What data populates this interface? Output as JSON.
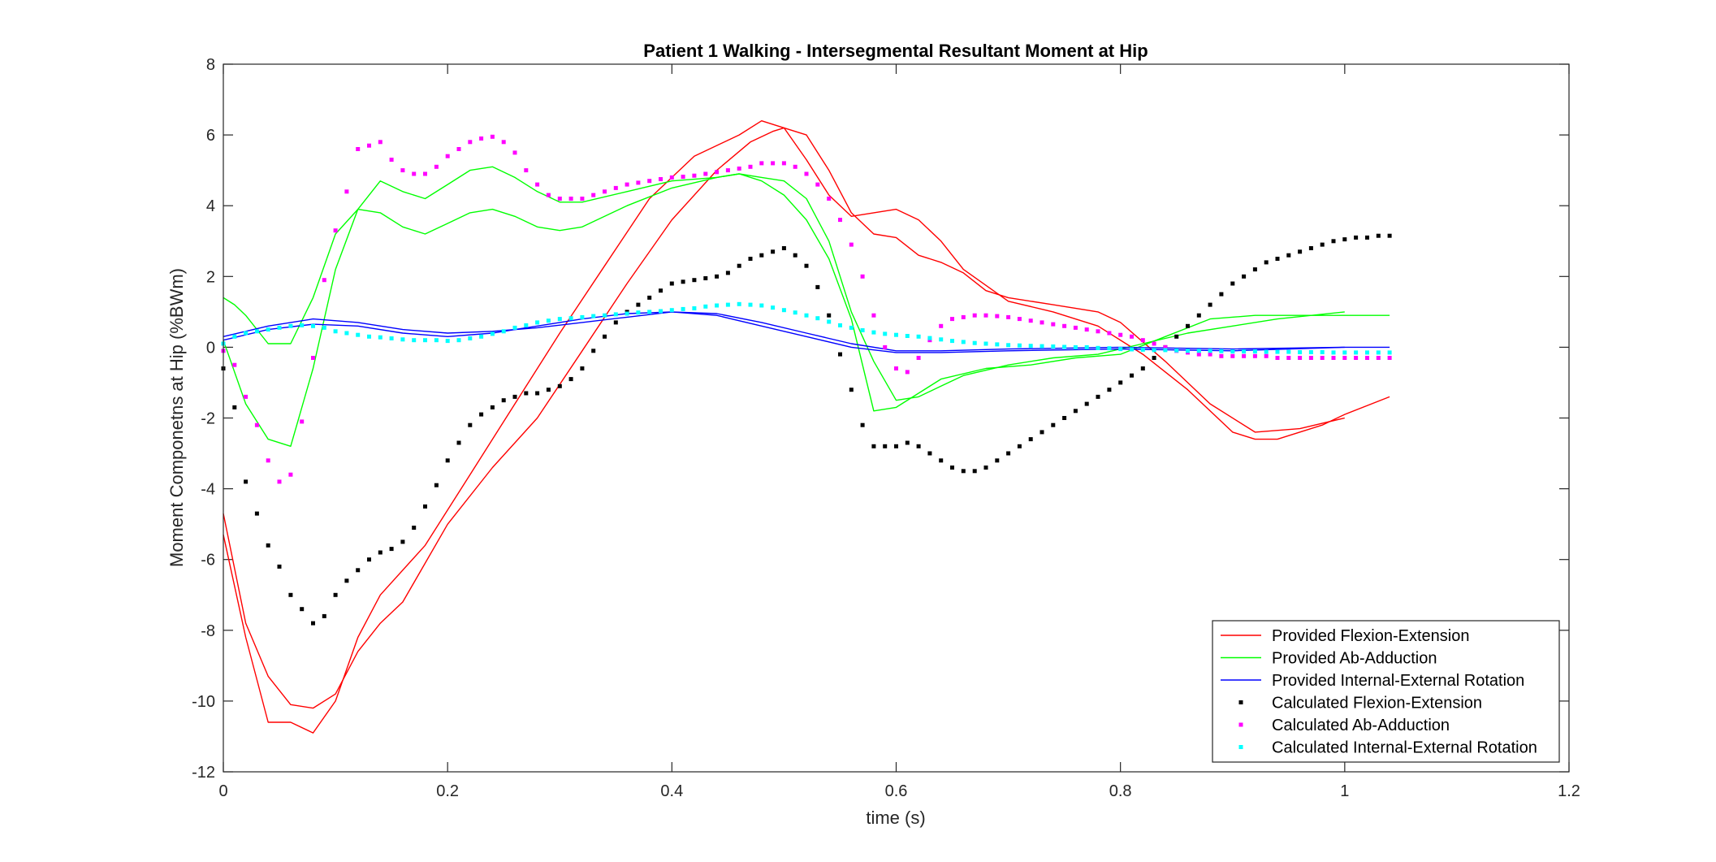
{
  "chart_data": {
    "type": "line",
    "title": "Patient 1 Walking - Intersegmental Resultant Moment at Hip",
    "xlabel": "time (s)",
    "ylabel": "Moment Componetns at Hip (%BWm)",
    "xlim": [
      0,
      1.2
    ],
    "ylim": [
      -12,
      8
    ],
    "xticks": [
      0,
      0.2,
      0.4,
      0.6,
      0.8,
      1,
      1.2
    ],
    "xtick_labels": [
      "0",
      "0.2",
      "0.4",
      "0.6",
      "0.8",
      "1",
      "1.2"
    ],
    "yticks": [
      -12,
      -10,
      -8,
      -6,
      -4,
      -2,
      0,
      2,
      4,
      6,
      8
    ],
    "ytick_labels": [
      "-12",
      "-10",
      "-8",
      "-6",
      "-4",
      "-2",
      "0",
      "2",
      "4",
      "6",
      "8"
    ],
    "grid": false,
    "legend_position": "bottom-right",
    "series": [
      {
        "name": "Provided Flexion-Extension",
        "style": "line",
        "color": "#ff0000",
        "segments": [
          {
            "x": [
              0,
              0.02,
              0.04,
              0.06,
              0.08,
              0.1,
              0.12,
              0.14,
              0.16,
              0.2,
              0.24,
              0.28,
              0.32,
              0.36,
              0.4,
              0.44,
              0.47,
              0.49,
              0.5,
              0.52,
              0.54,
              0.56,
              0.58,
              0.6,
              0.62,
              0.64,
              0.66,
              0.68,
              0.7,
              0.74,
              0.78,
              0.8,
              0.84,
              0.88,
              0.92,
              0.96,
              1.0
            ],
            "y": [
              -4.7,
              -7.8,
              -9.3,
              -10.1,
              -10.2,
              -9.8,
              -8.6,
              -7.8,
              -7.2,
              -5.0,
              -3.4,
              -2.0,
              -0.1,
              1.8,
              3.6,
              5.0,
              5.8,
              6.1,
              6.2,
              6.0,
              5.0,
              3.8,
              3.2,
              3.1,
              2.6,
              2.4,
              2.1,
              1.6,
              1.4,
              1.2,
              1.0,
              0.7,
              -0.4,
              -1.6,
              -2.4,
              -2.3,
              -2.0
            ]
          },
          {
            "x": [
              0,
              0.02,
              0.04,
              0.06,
              0.08,
              0.1,
              0.12,
              0.14,
              0.18,
              0.22,
              0.26,
              0.3,
              0.34,
              0.38,
              0.42,
              0.46,
              0.48,
              0.5,
              0.52,
              0.54,
              0.56,
              0.58,
              0.6,
              0.62,
              0.64,
              0.66,
              0.7,
              0.74,
              0.78,
              0.82,
              0.86,
              0.9,
              0.92,
              0.94,
              0.98,
              1.0,
              1.04
            ],
            "y": [
              -5.3,
              -8.2,
              -10.6,
              -10.6,
              -10.9,
              -10.0,
              -8.2,
              -7.0,
              -5.6,
              -3.6,
              -1.6,
              0.4,
              2.3,
              4.2,
              5.4,
              6.0,
              6.4,
              6.2,
              5.3,
              4.3,
              3.7,
              3.8,
              3.9,
              3.6,
              3.0,
              2.2,
              1.3,
              1.0,
              0.6,
              -0.2,
              -1.2,
              -2.4,
              -2.6,
              -2.6,
              -2.2,
              -1.9,
              -1.4
            ]
          }
        ]
      },
      {
        "name": "Provided Ab-Adduction",
        "style": "line",
        "color": "#00ff00",
        "segments": [
          {
            "x": [
              0,
              0.02,
              0.04,
              0.06,
              0.08,
              0.1,
              0.12,
              0.14,
              0.16,
              0.18,
              0.2,
              0.22,
              0.24,
              0.26,
              0.28,
              0.3,
              0.32,
              0.36,
              0.4,
              0.44,
              0.46,
              0.48,
              0.5,
              0.52,
              0.54,
              0.56,
              0.58,
              0.6,
              0.62,
              0.64,
              0.66,
              0.7,
              0.74,
              0.78,
              0.82,
              0.86,
              0.9,
              0.94,
              1.0
            ],
            "y": [
              0.2,
              -1.6,
              -2.6,
              -2.8,
              -0.6,
              2.2,
              3.9,
              4.7,
              4.4,
              4.2,
              4.6,
              5.0,
              5.1,
              4.8,
              4.4,
              4.1,
              4.1,
              4.4,
              4.7,
              4.8,
              4.9,
              4.8,
              4.7,
              4.2,
              3.0,
              1.0,
              -0.4,
              -1.5,
              -1.4,
              -1.1,
              -0.8,
              -0.5,
              -0.3,
              -0.2,
              0.1,
              0.4,
              0.6,
              0.8,
              1.0
            ]
          },
          {
            "x": [
              0,
              0.01,
              0.02,
              0.04,
              0.06,
              0.08,
              0.1,
              0.12,
              0.14,
              0.16,
              0.18,
              0.2,
              0.22,
              0.24,
              0.26,
              0.28,
              0.3,
              0.32,
              0.36,
              0.4,
              0.44,
              0.46,
              0.48,
              0.5,
              0.52,
              0.54,
              0.56,
              0.58,
              0.6,
              0.62,
              0.64,
              0.68,
              0.72,
              0.76,
              0.8,
              0.84,
              0.88,
              0.92,
              0.96,
              1.0,
              1.04
            ],
            "y": [
              1.4,
              1.2,
              0.9,
              0.1,
              0.1,
              1.4,
              3.2,
              3.9,
              3.8,
              3.4,
              3.2,
              3.5,
              3.8,
              3.9,
              3.7,
              3.4,
              3.3,
              3.4,
              4.0,
              4.5,
              4.8,
              4.9,
              4.7,
              4.3,
              3.6,
              2.5,
              0.8,
              -1.8,
              -1.7,
              -1.3,
              -0.9,
              -0.6,
              -0.5,
              -0.3,
              -0.2,
              0.3,
              0.8,
              0.9,
              0.9,
              0.9,
              0.9
            ]
          }
        ]
      },
      {
        "name": "Provided Internal-External Rotation",
        "style": "line",
        "color": "#0000ff",
        "segments": [
          {
            "x": [
              0,
              0.04,
              0.08,
              0.12,
              0.16,
              0.2,
              0.24,
              0.28,
              0.32,
              0.36,
              0.4,
              0.44,
              0.48,
              0.52,
              0.56,
              0.6,
              0.64,
              0.7,
              0.8,
              0.9,
              1.0,
              1.04
            ],
            "y": [
              0.3,
              0.6,
              0.8,
              0.7,
              0.5,
              0.4,
              0.45,
              0.55,
              0.7,
              0.85,
              1.0,
              0.95,
              0.7,
              0.4,
              0.1,
              -0.1,
              -0.1,
              -0.05,
              0.0,
              -0.05,
              0.0,
              0.0
            ]
          },
          {
            "x": [
              0,
              0.04,
              0.08,
              0.12,
              0.16,
              0.2,
              0.24,
              0.28,
              0.32,
              0.36,
              0.4,
              0.44,
              0.48,
              0.52,
              0.56,
              0.6,
              0.64,
              0.7,
              0.8,
              0.9,
              1.0
            ],
            "y": [
              0.2,
              0.5,
              0.65,
              0.6,
              0.4,
              0.3,
              0.4,
              0.6,
              0.8,
              0.95,
              1.0,
              0.9,
              0.6,
              0.3,
              0.0,
              -0.15,
              -0.15,
              -0.1,
              -0.05,
              -0.1,
              0.0
            ]
          }
        ]
      },
      {
        "name": "Calculated Flexion-Extension",
        "style": "marker",
        "color": "#000000",
        "x": [
          0,
          0.01,
          0.02,
          0.03,
          0.04,
          0.05,
          0.06,
          0.07,
          0.08,
          0.09,
          0.1,
          0.11,
          0.12,
          0.13,
          0.14,
          0.15,
          0.16,
          0.17,
          0.18,
          0.19,
          0.2,
          0.21,
          0.22,
          0.23,
          0.24,
          0.25,
          0.26,
          0.27,
          0.28,
          0.29,
          0.3,
          0.31,
          0.32,
          0.33,
          0.34,
          0.35,
          0.36,
          0.37,
          0.38,
          0.39,
          0.4,
          0.41,
          0.42,
          0.43,
          0.44,
          0.45,
          0.46,
          0.47,
          0.48,
          0.49,
          0.5,
          0.51,
          0.52,
          0.53,
          0.54,
          0.55,
          0.56,
          0.57,
          0.58,
          0.59,
          0.6,
          0.61,
          0.62,
          0.63,
          0.64,
          0.65,
          0.66,
          0.67,
          0.68,
          0.69,
          0.7,
          0.71,
          0.72,
          0.73,
          0.74,
          0.75,
          0.76,
          0.77,
          0.78,
          0.79,
          0.8,
          0.81,
          0.82,
          0.83,
          0.84,
          0.85,
          0.86,
          0.87,
          0.88,
          0.89,
          0.9,
          0.91,
          0.92,
          0.93,
          0.94,
          0.95,
          0.96,
          0.97,
          0.98,
          0.99,
          1.0,
          1.01,
          1.02,
          1.03,
          1.04
        ],
        "y": [
          -0.6,
          -1.7,
          -3.8,
          -4.7,
          -5.6,
          -6.2,
          -7.0,
          -7.4,
          -7.8,
          -7.6,
          -7.0,
          -6.6,
          -6.3,
          -6.0,
          -5.8,
          -5.7,
          -5.5,
          -5.1,
          -4.5,
          -3.9,
          -3.2,
          -2.7,
          -2.2,
          -1.9,
          -1.7,
          -1.5,
          -1.4,
          -1.3,
          -1.3,
          -1.2,
          -1.1,
          -0.9,
          -0.6,
          -0.1,
          0.3,
          0.7,
          1.0,
          1.2,
          1.4,
          1.6,
          1.8,
          1.85,
          1.9,
          1.95,
          2.0,
          2.1,
          2.3,
          2.5,
          2.6,
          2.7,
          2.8,
          2.6,
          2.3,
          1.7,
          0.9,
          -0.2,
          -1.2,
          -2.2,
          -2.8,
          -2.8,
          -2.8,
          -2.7,
          -2.8,
          -3.0,
          -3.2,
          -3.4,
          -3.5,
          -3.5,
          -3.4,
          -3.2,
          -3.0,
          -2.8,
          -2.6,
          -2.4,
          -2.2,
          -2.0,
          -1.8,
          -1.6,
          -1.4,
          -1.2,
          -1.0,
          -0.8,
          -0.6,
          -0.3,
          0.0,
          0.3,
          0.6,
          0.9,
          1.2,
          1.5,
          1.8,
          2.0,
          2.2,
          2.4,
          2.5,
          2.6,
          2.7,
          2.8,
          2.9,
          3.0,
          3.05,
          3.1,
          3.1,
          3.15,
          3.15
        ]
      },
      {
        "name": "Calculated Ab-Adduction",
        "style": "marker",
        "color": "#ff00ff",
        "x": [
          0,
          0.01,
          0.02,
          0.03,
          0.04,
          0.05,
          0.06,
          0.07,
          0.08,
          0.09,
          0.1,
          0.11,
          0.12,
          0.13,
          0.14,
          0.15,
          0.16,
          0.17,
          0.18,
          0.19,
          0.2,
          0.21,
          0.22,
          0.23,
          0.24,
          0.25,
          0.26,
          0.27,
          0.28,
          0.29,
          0.3,
          0.31,
          0.32,
          0.33,
          0.34,
          0.35,
          0.36,
          0.37,
          0.38,
          0.39,
          0.4,
          0.41,
          0.42,
          0.43,
          0.44,
          0.45,
          0.46,
          0.47,
          0.48,
          0.49,
          0.5,
          0.51,
          0.52,
          0.53,
          0.54,
          0.55,
          0.56,
          0.57,
          0.58,
          0.59,
          0.6,
          0.61,
          0.62,
          0.63,
          0.64,
          0.65,
          0.66,
          0.67,
          0.68,
          0.69,
          0.7,
          0.71,
          0.72,
          0.73,
          0.74,
          0.75,
          0.76,
          0.77,
          0.78,
          0.79,
          0.8,
          0.81,
          0.82,
          0.83,
          0.84,
          0.85,
          0.86,
          0.87,
          0.88,
          0.89,
          0.9,
          0.91,
          0.92,
          0.93,
          0.94,
          0.95,
          0.96,
          0.97,
          0.98,
          0.99,
          1.0,
          1.01,
          1.02,
          1.03,
          1.04
        ],
        "y": [
          -0.1,
          -0.5,
          -1.4,
          -2.2,
          -3.2,
          -3.8,
          -3.6,
          -2.1,
          -0.3,
          1.9,
          3.3,
          4.4,
          5.6,
          5.7,
          5.8,
          5.3,
          5.0,
          4.9,
          4.9,
          5.1,
          5.4,
          5.6,
          5.8,
          5.9,
          5.95,
          5.8,
          5.5,
          5.0,
          4.6,
          4.3,
          4.2,
          4.2,
          4.2,
          4.3,
          4.4,
          4.5,
          4.6,
          4.65,
          4.7,
          4.75,
          4.8,
          4.82,
          4.85,
          4.9,
          4.95,
          5.0,
          5.05,
          5.1,
          5.2,
          5.2,
          5.2,
          5.1,
          4.9,
          4.6,
          4.2,
          3.6,
          2.9,
          2.0,
          0.9,
          0.0,
          -0.6,
          -0.7,
          -0.3,
          0.2,
          0.6,
          0.8,
          0.85,
          0.9,
          0.9,
          0.88,
          0.85,
          0.8,
          0.75,
          0.7,
          0.65,
          0.6,
          0.55,
          0.5,
          0.45,
          0.4,
          0.35,
          0.3,
          0.2,
          0.1,
          0.0,
          -0.1,
          -0.15,
          -0.2,
          -0.2,
          -0.25,
          -0.25,
          -0.25,
          -0.25,
          -0.25,
          -0.3,
          -0.3,
          -0.3,
          -0.3,
          -0.3,
          -0.3,
          -0.3,
          -0.3,
          -0.3,
          -0.3,
          -0.3
        ]
      },
      {
        "name": "Calculated Internal-External Rotation",
        "style": "marker",
        "color": "#00ffff",
        "x": [
          0,
          0.01,
          0.02,
          0.03,
          0.04,
          0.05,
          0.06,
          0.07,
          0.08,
          0.09,
          0.1,
          0.11,
          0.12,
          0.13,
          0.14,
          0.15,
          0.16,
          0.17,
          0.18,
          0.19,
          0.2,
          0.21,
          0.22,
          0.23,
          0.24,
          0.25,
          0.26,
          0.27,
          0.28,
          0.29,
          0.3,
          0.31,
          0.32,
          0.33,
          0.34,
          0.35,
          0.36,
          0.37,
          0.38,
          0.39,
          0.4,
          0.41,
          0.42,
          0.43,
          0.44,
          0.45,
          0.46,
          0.47,
          0.48,
          0.49,
          0.5,
          0.51,
          0.52,
          0.53,
          0.54,
          0.55,
          0.56,
          0.57,
          0.58,
          0.59,
          0.6,
          0.61,
          0.62,
          0.63,
          0.64,
          0.65,
          0.66,
          0.67,
          0.68,
          0.69,
          0.7,
          0.71,
          0.72,
          0.73,
          0.74,
          0.75,
          0.76,
          0.77,
          0.78,
          0.79,
          0.8,
          0.81,
          0.82,
          0.83,
          0.84,
          0.85,
          0.86,
          0.87,
          0.88,
          0.89,
          0.9,
          0.91,
          0.92,
          0.93,
          0.94,
          0.95,
          0.96,
          0.97,
          0.98,
          0.99,
          1.0,
          1.01,
          1.02,
          1.03,
          1.04
        ],
        "y": [
          0.1,
          0.3,
          0.4,
          0.45,
          0.5,
          0.55,
          0.6,
          0.62,
          0.6,
          0.55,
          0.45,
          0.4,
          0.35,
          0.3,
          0.28,
          0.25,
          0.22,
          0.2,
          0.2,
          0.2,
          0.18,
          0.2,
          0.25,
          0.3,
          0.38,
          0.45,
          0.55,
          0.62,
          0.7,
          0.75,
          0.8,
          0.82,
          0.85,
          0.88,
          0.9,
          0.93,
          0.95,
          0.98,
          1.0,
          1.02,
          1.05,
          1.08,
          1.1,
          1.15,
          1.18,
          1.2,
          1.22,
          1.2,
          1.18,
          1.12,
          1.05,
          0.98,
          0.9,
          0.82,
          0.72,
          0.62,
          0.55,
          0.48,
          0.42,
          0.38,
          0.35,
          0.32,
          0.3,
          0.26,
          0.22,
          0.18,
          0.15,
          0.12,
          0.1,
          0.08,
          0.06,
          0.05,
          0.04,
          0.03,
          0.02,
          0.01,
          0.0,
          0.0,
          -0.02,
          -0.03,
          -0.05,
          -0.06,
          -0.07,
          -0.08,
          -0.08,
          -0.09,
          -0.1,
          -0.1,
          -0.1,
          -0.11,
          -0.12,
          -0.12,
          -0.12,
          -0.13,
          -0.13,
          -0.13,
          -0.14,
          -0.14,
          -0.14,
          -0.15,
          -0.15,
          -0.15,
          -0.15,
          -0.15,
          -0.15
        ]
      }
    ]
  }
}
